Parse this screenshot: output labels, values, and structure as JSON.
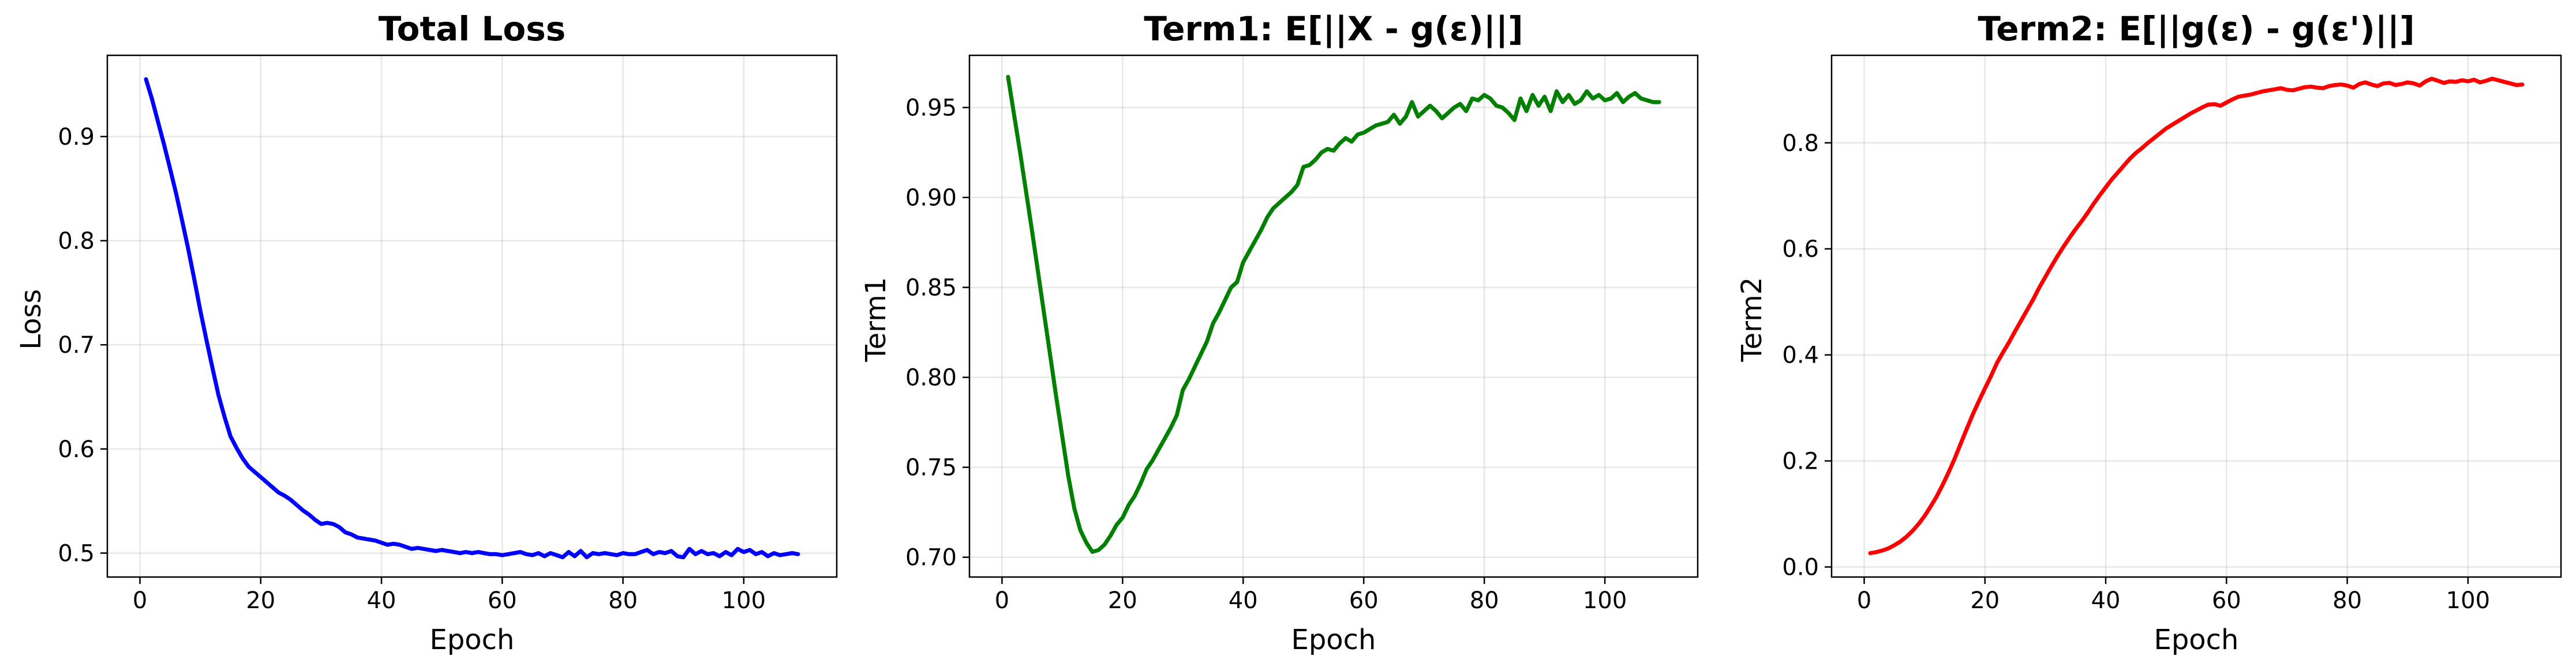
{
  "figure": {
    "panels": [
      {
        "title": "Total Loss",
        "xlabel": "Epoch",
        "ylabel": "Loss"
      },
      {
        "title": "Term1: E[||X - g(ε)||]",
        "xlabel": "Epoch",
        "ylabel": "Term1"
      },
      {
        "title": "Term2: E[||g(ε) - g(ε')||]",
        "xlabel": "Epoch",
        "ylabel": "Term2"
      }
    ]
  },
  "chart_data": [
    {
      "type": "line",
      "title": "Total Loss",
      "xlabel": "Epoch",
      "ylabel": "Loss",
      "xlim": [
        -5.4,
        115.4
      ],
      "ylim": [
        0.477,
        0.978
      ],
      "xticks": [
        0,
        20,
        40,
        60,
        80,
        100
      ],
      "yticks": [
        0.5,
        0.6,
        0.7,
        0.8,
        0.9
      ],
      "ytick_format": 1,
      "grid": true,
      "color": "#0000ff",
      "x": [
        1,
        2,
        3,
        4,
        5,
        6,
        7,
        8,
        9,
        10,
        11,
        12,
        13,
        14,
        15,
        16,
        17,
        18,
        19,
        20,
        21,
        22,
        23,
        24,
        25,
        26,
        27,
        28,
        29,
        30,
        31,
        32,
        33,
        34,
        35,
        36,
        37,
        38,
        39,
        40,
        41,
        42,
        43,
        44,
        45,
        46,
        47,
        48,
        49,
        50,
        51,
        52,
        53,
        54,
        55,
        56,
        57,
        58,
        59,
        60,
        61,
        62,
        63,
        64,
        65,
        66,
        67,
        68,
        69,
        70,
        71,
        72,
        73,
        74,
        75,
        76,
        77,
        78,
        79,
        80,
        81,
        82,
        83,
        84,
        85,
        86,
        87,
        88,
        89,
        90,
        91,
        92,
        93,
        94,
        95,
        96,
        97,
        98,
        99,
        100,
        101,
        102,
        103,
        104,
        105,
        106,
        107,
        108,
        109
      ],
      "y": [
        0.955,
        0.936,
        0.914,
        0.892,
        0.869,
        0.845,
        0.819,
        0.792,
        0.763,
        0.733,
        0.705,
        0.678,
        0.652,
        0.631,
        0.612,
        0.601,
        0.591,
        0.583,
        0.578,
        0.573,
        0.568,
        0.563,
        0.558,
        0.555,
        0.551,
        0.546,
        0.541,
        0.537,
        0.532,
        0.528,
        0.529,
        0.528,
        0.525,
        0.52,
        0.518,
        0.515,
        0.514,
        0.513,
        0.512,
        0.51,
        0.508,
        0.509,
        0.508,
        0.506,
        0.504,
        0.505,
        0.504,
        0.503,
        0.502,
        0.503,
        0.502,
        0.501,
        0.5,
        0.501,
        0.5,
        0.501,
        0.5,
        0.499,
        0.499,
        0.498,
        0.499,
        0.5,
        0.501,
        0.499,
        0.498,
        0.5,
        0.497,
        0.5,
        0.498,
        0.496,
        0.501,
        0.497,
        0.502,
        0.496,
        0.5,
        0.499,
        0.5,
        0.499,
        0.498,
        0.5,
        0.499,
        0.499,
        0.501,
        0.503,
        0.499,
        0.501,
        0.5,
        0.502,
        0.497,
        0.496,
        0.504,
        0.499,
        0.502,
        0.499,
        0.5,
        0.497,
        0.501,
        0.498,
        0.504,
        0.501,
        0.503,
        0.499,
        0.501,
        0.497,
        0.5,
        0.498,
        0.499,
        0.5,
        0.499
      ]
    },
    {
      "type": "line",
      "title": "Term1: E[||X - g(ε)||]",
      "xlabel": "Epoch",
      "ylabel": "Term1",
      "xlim": [
        -5.4,
        115.4
      ],
      "ylim": [
        0.689,
        0.979
      ],
      "xticks": [
        0,
        20,
        40,
        60,
        80,
        100
      ],
      "yticks": [
        0.7,
        0.75,
        0.8,
        0.85,
        0.9,
        0.95
      ],
      "ytick_format": 2,
      "grid": true,
      "color": "#008000",
      "x": [
        1,
        2,
        3,
        4,
        5,
        6,
        7,
        8,
        9,
        10,
        11,
        12,
        13,
        14,
        15,
        16,
        17,
        18,
        19,
        20,
        21,
        22,
        23,
        24,
        25,
        26,
        27,
        28,
        29,
        30,
        31,
        32,
        33,
        34,
        35,
        36,
        37,
        38,
        39,
        40,
        41,
        42,
        43,
        44,
        45,
        46,
        47,
        48,
        49,
        50,
        51,
        52,
        53,
        54,
        55,
        56,
        57,
        58,
        59,
        60,
        61,
        62,
        63,
        64,
        65,
        66,
        67,
        68,
        69,
        70,
        71,
        72,
        73,
        74,
        75,
        76,
        77,
        78,
        79,
        80,
        81,
        82,
        83,
        84,
        85,
        86,
        87,
        88,
        89,
        90,
        91,
        92,
        93,
        94,
        95,
        96,
        97,
        98,
        99,
        100,
        101,
        102,
        103,
        104,
        105,
        106,
        107,
        108,
        109
      ],
      "y": [
        0.967,
        0.946,
        0.925,
        0.903,
        0.881,
        0.858,
        0.835,
        0.812,
        0.789,
        0.767,
        0.745,
        0.727,
        0.715,
        0.708,
        0.703,
        0.704,
        0.707,
        0.712,
        0.718,
        0.722,
        0.729,
        0.734,
        0.741,
        0.749,
        0.754,
        0.76,
        0.766,
        0.772,
        0.779,
        0.793,
        0.799,
        0.806,
        0.813,
        0.82,
        0.83,
        0.836,
        0.843,
        0.85,
        0.853,
        0.864,
        0.87,
        0.876,
        0.882,
        0.889,
        0.894,
        0.897,
        0.9,
        0.903,
        0.907,
        0.917,
        0.918,
        0.921,
        0.925,
        0.927,
        0.926,
        0.93,
        0.933,
        0.931,
        0.935,
        0.936,
        0.938,
        0.94,
        0.941,
        0.942,
        0.946,
        0.941,
        0.945,
        0.953,
        0.945,
        0.948,
        0.951,
        0.948,
        0.944,
        0.947,
        0.95,
        0.952,
        0.948,
        0.955,
        0.954,
        0.957,
        0.955,
        0.951,
        0.95,
        0.947,
        0.943,
        0.955,
        0.948,
        0.957,
        0.951,
        0.956,
        0.948,
        0.959,
        0.953,
        0.957,
        0.952,
        0.954,
        0.959,
        0.955,
        0.957,
        0.954,
        0.955,
        0.958,
        0.953,
        0.956,
        0.958,
        0.955,
        0.954,
        0.953,
        0.953
      ]
    },
    {
      "type": "line",
      "title": "Term2: E[||g(ε) - g(ε')||]",
      "xlabel": "Epoch",
      "ylabel": "Term2",
      "xlim": [
        -5.4,
        115.4
      ],
      "ylim": [
        -0.019,
        0.965
      ],
      "xticks": [
        0,
        20,
        40,
        60,
        80,
        100
      ],
      "yticks": [
        0.0,
        0.2,
        0.4,
        0.6,
        0.8
      ],
      "ytick_format": 1,
      "grid": true,
      "color": "#ff0000",
      "x": [
        1,
        2,
        3,
        4,
        5,
        6,
        7,
        8,
        9,
        10,
        11,
        12,
        13,
        14,
        15,
        16,
        17,
        18,
        19,
        20,
        21,
        22,
        23,
        24,
        25,
        26,
        27,
        28,
        29,
        30,
        31,
        32,
        33,
        34,
        35,
        36,
        37,
        38,
        39,
        40,
        41,
        42,
        43,
        44,
        45,
        46,
        47,
        48,
        49,
        50,
        51,
        52,
        53,
        54,
        55,
        56,
        57,
        58,
        59,
        60,
        61,
        62,
        63,
        64,
        65,
        66,
        67,
        68,
        69,
        70,
        71,
        72,
        73,
        74,
        75,
        76,
        77,
        78,
        79,
        80,
        81,
        82,
        83,
        84,
        85,
        86,
        87,
        88,
        89,
        90,
        91,
        92,
        93,
        94,
        95,
        96,
        97,
        98,
        99,
        100,
        101,
        102,
        103,
        104,
        105,
        106,
        107,
        108,
        109
      ],
      "y": [
        0.026,
        0.028,
        0.031,
        0.035,
        0.041,
        0.048,
        0.057,
        0.068,
        0.081,
        0.096,
        0.114,
        0.133,
        0.155,
        0.179,
        0.205,
        0.233,
        0.261,
        0.288,
        0.313,
        0.337,
        0.36,
        0.385,
        0.405,
        0.424,
        0.445,
        0.465,
        0.485,
        0.505,
        0.527,
        0.547,
        0.567,
        0.586,
        0.604,
        0.621,
        0.637,
        0.652,
        0.668,
        0.685,
        0.701,
        0.716,
        0.731,
        0.744,
        0.757,
        0.77,
        0.781,
        0.79,
        0.8,
        0.809,
        0.818,
        0.827,
        0.834,
        0.841,
        0.848,
        0.855,
        0.861,
        0.867,
        0.872,
        0.873,
        0.87,
        0.876,
        0.882,
        0.887,
        0.889,
        0.891,
        0.894,
        0.897,
        0.899,
        0.901,
        0.903,
        0.9,
        0.899,
        0.902,
        0.905,
        0.906,
        0.904,
        0.903,
        0.907,
        0.909,
        0.91,
        0.908,
        0.904,
        0.911,
        0.914,
        0.91,
        0.907,
        0.912,
        0.913,
        0.909,
        0.911,
        0.914,
        0.912,
        0.908,
        0.916,
        0.921,
        0.917,
        0.913,
        0.916,
        0.915,
        0.918,
        0.916,
        0.919,
        0.914,
        0.917,
        0.921,
        0.918,
        0.915,
        0.912,
        0.909,
        0.91
      ]
    }
  ]
}
